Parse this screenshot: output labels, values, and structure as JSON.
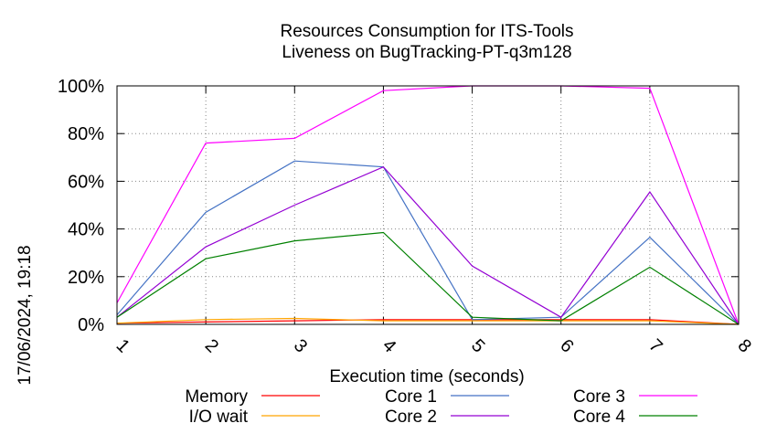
{
  "chart_data": {
    "type": "line",
    "title_line1": "Resources Consumption for ITS-Tools",
    "title_line2": "Liveness on BugTracking-PT-q3m128",
    "xlabel": "Execution time (seconds)",
    "ylabel": "",
    "side_label": "17/06/2024, 19:18",
    "x": [
      1,
      2,
      3,
      4,
      5,
      6,
      7,
      8
    ],
    "x_ticks": [
      "1",
      "2",
      "3",
      "4",
      "5",
      "6",
      "7",
      "8"
    ],
    "y_ticks": [
      "0%",
      "20%",
      "40%",
      "60%",
      "80%",
      "100%"
    ],
    "y_tick_values": [
      0,
      20,
      40,
      60,
      80,
      100
    ],
    "xlim": [
      1,
      8
    ],
    "ylim": [
      0,
      100
    ],
    "grid": true,
    "legend_position": "bottom",
    "series": [
      {
        "name": "Memory",
        "color": "#ff0000",
        "values": [
          0.5,
          1.0,
          1.5,
          2.0,
          2.0,
          2.0,
          2.0,
          0
        ]
      },
      {
        "name": "I/O wait",
        "color": "#ffa500",
        "values": [
          0.5,
          2.0,
          2.5,
          1.5,
          1.5,
          1.5,
          1.5,
          0
        ]
      },
      {
        "name": "Core 1",
        "color": "#4472c4",
        "values": [
          4,
          47,
          68.5,
          66,
          2,
          3,
          36.5,
          0
        ]
      },
      {
        "name": "Core 2",
        "color": "#9400d3",
        "values": [
          3,
          32.5,
          50,
          66,
          24.5,
          3,
          55.5,
          0
        ]
      },
      {
        "name": "Core 3",
        "color": "#ff00ff",
        "values": [
          9,
          76,
          78,
          98,
          100,
          100,
          99,
          0
        ]
      },
      {
        "name": "Core 4",
        "color": "#008000",
        "values": [
          3,
          27.5,
          35,
          38.5,
          3,
          1.5,
          24,
          0
        ]
      }
    ]
  }
}
